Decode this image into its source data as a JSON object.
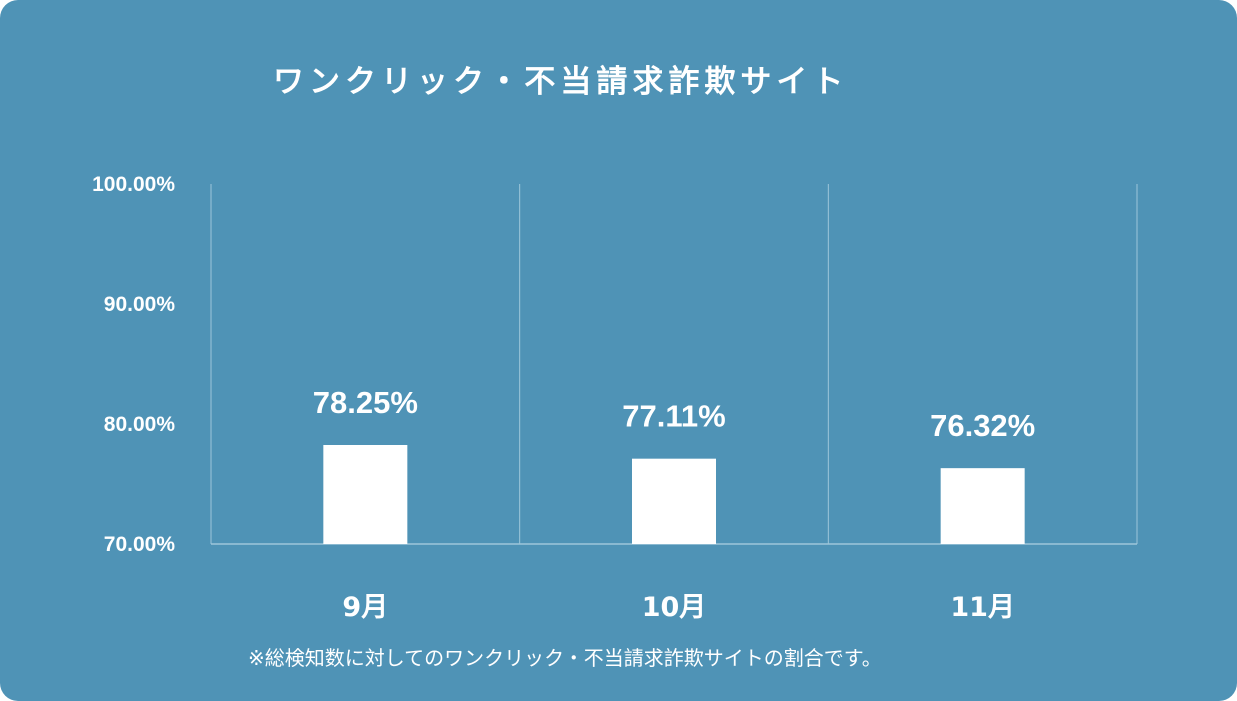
{
  "chart_data": {
    "type": "bar",
    "title": "ワンクリック・不当請求詐欺サイト",
    "categories": [
      "9月",
      "10月",
      "11月"
    ],
    "values": [
      78.25,
      77.11,
      76.32
    ],
    "value_labels": [
      "78.25%",
      "77.11%",
      "76.32%"
    ],
    "ylim": [
      70,
      100
    ],
    "yticks": [
      70,
      80,
      90,
      100
    ],
    "ytick_labels": [
      "70.00%",
      "80.00%",
      "90.00%",
      "100.00%"
    ],
    "grid": "vertical",
    "note": "※総検知数に対してのワンクリック・不当請求詐欺サイトの割合です。"
  },
  "colors": {
    "background": "#4f93b6",
    "bar": "#ffffff",
    "text": "#ffffff",
    "grid": "#9ec6da"
  }
}
